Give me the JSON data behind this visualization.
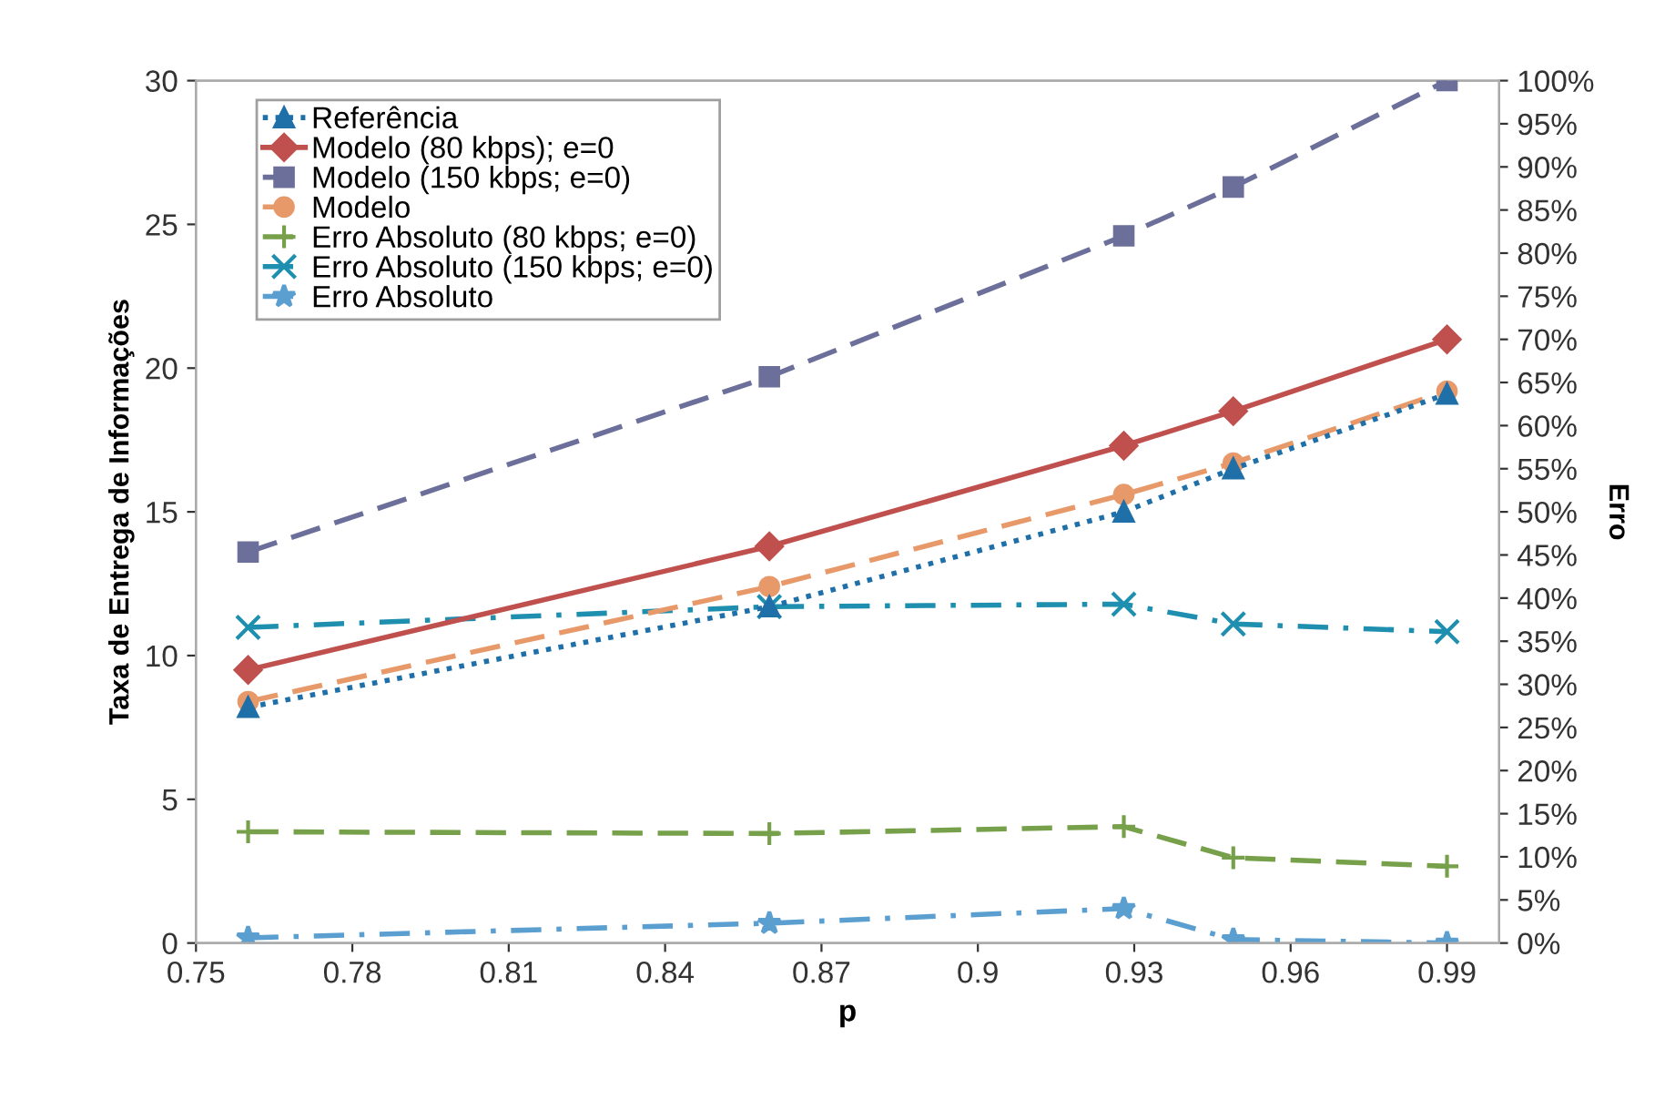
{
  "chart_data": {
    "type": "line",
    "xlabel": "p",
    "ylabel": "Taxa de Entrega de Informações",
    "y2label": "Erro",
    "x": [
      0.76,
      0.86,
      0.928,
      0.949,
      0.99
    ],
    "xlim": [
      0.75,
      1.0
    ],
    "xticks": [
      0.75,
      0.78,
      0.81,
      0.84,
      0.87,
      0.9,
      0.93,
      0.96,
      0.99
    ],
    "ylim": [
      0,
      30
    ],
    "yticks": [
      0,
      5,
      10,
      15,
      20,
      25,
      30
    ],
    "y2lim": [
      0,
      100
    ],
    "y2ticks": [
      {
        "value": 0,
        "label": "0%"
      },
      {
        "value": 5,
        "label": "5%"
      },
      {
        "value": 10,
        "label": "10%"
      },
      {
        "value": 15,
        "label": "15%"
      },
      {
        "value": 20,
        "label": "20%"
      },
      {
        "value": 25,
        "label": "25%"
      },
      {
        "value": 30,
        "label": "30%"
      },
      {
        "value": 35,
        "label": "35%"
      },
      {
        "value": 40,
        "label": "40%"
      },
      {
        "value": 45,
        "label": "45%"
      },
      {
        "value": 50,
        "label": "50%"
      },
      {
        "value": 55,
        "label": "55%"
      },
      {
        "value": 60,
        "label": "60%"
      },
      {
        "value": 65,
        "label": "65%"
      },
      {
        "value": 70,
        "label": "70%"
      },
      {
        "value": 75,
        "label": "75%"
      },
      {
        "value": 80,
        "label": "80%"
      },
      {
        "value": 85,
        "label": "85%"
      },
      {
        "value": 90,
        "label": "90%"
      },
      {
        "value": 95,
        "label": "95%"
      },
      {
        "value": 100,
        "label": "100%"
      }
    ],
    "grid": false,
    "legend": "top left",
    "series": [
      {
        "name": "Referência",
        "color": "#1f6fa8",
        "marker": "triangle",
        "line_style": "dotted",
        "values": [
          8.2,
          11.7,
          15.0,
          16.5,
          19.1
        ]
      },
      {
        "name": "Modelo (80 kbps); e=0",
        "color": "#c0504d",
        "marker": "diamond",
        "line_style": "solid",
        "values": [
          9.5,
          13.8,
          17.3,
          18.5,
          21.0
        ]
      },
      {
        "name": "Modelo (150 kbps; e=0)",
        "color": "#6b6f9a",
        "marker": "square",
        "line_style": "dashed",
        "values": [
          13.6,
          19.7,
          24.6,
          26.3,
          30.0
        ]
      },
      {
        "name": "Modelo",
        "color": "#e8996a",
        "marker": "circle",
        "line_style": "dashed",
        "values": [
          8.4,
          12.4,
          15.6,
          16.7,
          19.2
        ]
      },
      {
        "name": "Erro Absoluto (80 kbps; e=0)",
        "color": "#77a04a",
        "marker": "plus",
        "line_style": "dashed",
        "axis": "y2",
        "values": [
          12.9,
          12.7,
          13.5,
          9.9,
          8.9
        ]
      },
      {
        "name": "Erro Absoluto (150 kbps; e=0)",
        "color": "#1f8fb0",
        "marker": "cross",
        "line_style": "dashdot",
        "axis": "y2",
        "values": [
          36.6,
          39.0,
          39.3,
          37.0,
          36.1
        ]
      },
      {
        "name": "Erro Absoluto",
        "color": "#5a9fd0",
        "marker": "star",
        "line_style": "dashdot",
        "axis": "y2",
        "values": [
          0.6,
          2.3,
          4.0,
          0.4,
          0.0
        ]
      }
    ]
  }
}
